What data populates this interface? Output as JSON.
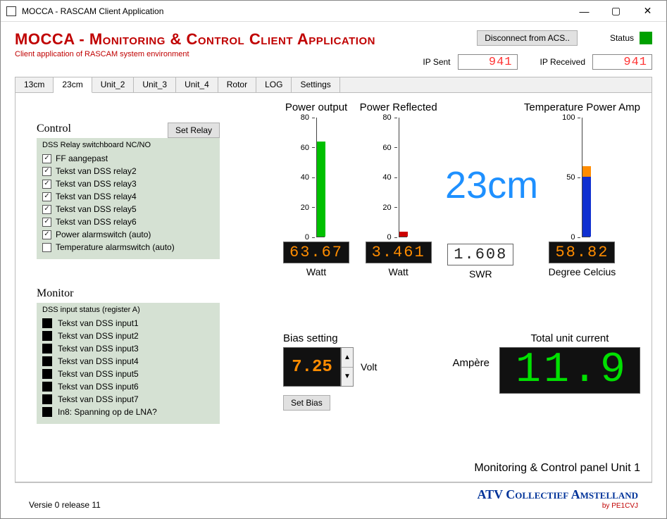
{
  "window": {
    "title": "MOCCA - RASCAM Client Application"
  },
  "app": {
    "title": "MOCCA - Monitoring & Control Client Application",
    "subtitle": "Client application of RASCAM system environment"
  },
  "header": {
    "disconnect_label": "Disconnect from ACS..",
    "status_label": "Status",
    "status_color": "#00a000",
    "ip_sent_label": "IP Sent",
    "ip_sent_value": "941",
    "ip_recv_label": "IP Received",
    "ip_recv_value": "941"
  },
  "tabs": {
    "items": [
      "13cm",
      "23cm",
      "Unit_2",
      "Unit_3",
      "Unit_4",
      "Rotor",
      "LOG",
      "Settings"
    ],
    "active_index": 1
  },
  "band_label": "23cm",
  "control": {
    "title": "Control",
    "set_relay_label": "Set Relay",
    "group_title": "DSS Relay switchboard NC/NO",
    "items": [
      {
        "label": "FF aangepast",
        "checked": true
      },
      {
        "label": "Tekst van DSS relay2",
        "checked": true
      },
      {
        "label": "Tekst van DSS relay3",
        "checked": true
      },
      {
        "label": "Tekst van DSS relay4",
        "checked": true
      },
      {
        "label": "Tekst van DSS relay5",
        "checked": true
      },
      {
        "label": "Tekst van DSS relay6",
        "checked": true
      },
      {
        "label": "Power alarmswitch (auto)",
        "checked": true
      },
      {
        "label": "Temperature alarmswitch (auto)",
        "checked": false
      }
    ]
  },
  "monitor": {
    "title": "Monitor",
    "group_title": "DSS input status (register A)",
    "items": [
      "Tekst van DSS input1",
      "Tekst van DSS input2",
      "Tekst van DSS input3",
      "Tekst van DSS input4",
      "Tekst van DSS input5",
      "Tekst van DSS input6",
      "Tekst van DSS input7",
      "In8: Spanning op de LNA?"
    ],
    "indicator_color": "#000000"
  },
  "meters": {
    "power_output": {
      "title": "Power output",
      "value_text": "63.67",
      "unit": "Watt",
      "max": 80,
      "value": 63.67,
      "tick_step": 20,
      "bar_color": "#00c000",
      "lcd_color": "#ff8c00",
      "lcd_bg": "#111111"
    },
    "power_reflected": {
      "title": "Power Reflected",
      "value_text": "3.461",
      "unit": "Watt",
      "max": 80,
      "value": 3.461,
      "tick_step": 20,
      "bar_color": "#cc0000",
      "lcd_color": "#ff8c00",
      "lcd_bg": "#111111"
    },
    "swr": {
      "title": "",
      "value_text": "1.608",
      "unit": "SWR",
      "lcd_color": "#222222",
      "lcd_bg": "#ffffff"
    },
    "temperature": {
      "title": "Temperature Power Amp",
      "value_text": "58.82",
      "unit": "Degree Celcius",
      "max": 100,
      "tick_step": 50,
      "segments": [
        {
          "from": 0,
          "to": 50,
          "color": "#1030d0"
        },
        {
          "from": 50,
          "to": 58.82,
          "color": "#ff8c00"
        }
      ],
      "lcd_color": "#ff8c00",
      "lcd_bg": "#111111"
    }
  },
  "bias": {
    "title": "Bias setting",
    "value": "7.25",
    "unit": "Volt",
    "set_label": "Set Bias",
    "lcd_color": "#ff8c00",
    "lcd_bg": "#111111"
  },
  "current": {
    "title": "Total unit current",
    "unit": "Ampère",
    "value": "11.9",
    "lcd_color": "#00e000",
    "lcd_bg": "#111111"
  },
  "panel_label": "Monitoring & Control panel Unit 1",
  "footer": {
    "version": "Versie 0 release 11",
    "brand": "ATV Collectief Amstelland",
    "brand_sub": "by PE1CVJ"
  }
}
